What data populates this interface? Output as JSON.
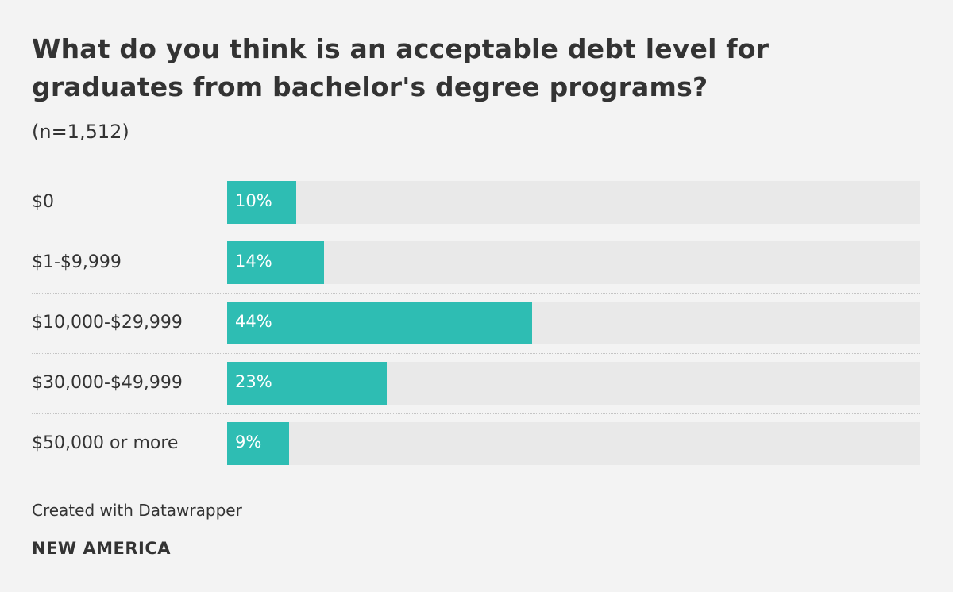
{
  "header": {
    "title": "What do you think is an acceptable debt level for graduates from bachelor's degree programs?",
    "subtitle": "(n=1,512)"
  },
  "footer": {
    "credit": "Created with Datawrapper",
    "brand": "NEW AMERICA"
  },
  "colors": {
    "bar": "#2ebdb3",
    "track": "#e9e9e9",
    "background": "#f3f3f3",
    "text": "#333333"
  },
  "chart_data": {
    "type": "bar",
    "orientation": "horizontal",
    "title": "What do you think is an acceptable debt level for graduates from bachelor's degree programs?",
    "subtitle": "(n=1,512)",
    "categories": [
      "$0",
      "$1-$9,999",
      "$10,000-$29,999",
      "$30,000-$49,999",
      "$50,000 or more"
    ],
    "values": [
      10,
      14,
      44,
      23,
      9
    ],
    "value_labels": [
      "10%",
      "14%",
      "44%",
      "23%",
      "9%"
    ],
    "unit": "%",
    "xlim": [
      0,
      100
    ],
    "grid": false,
    "legend": "none"
  }
}
